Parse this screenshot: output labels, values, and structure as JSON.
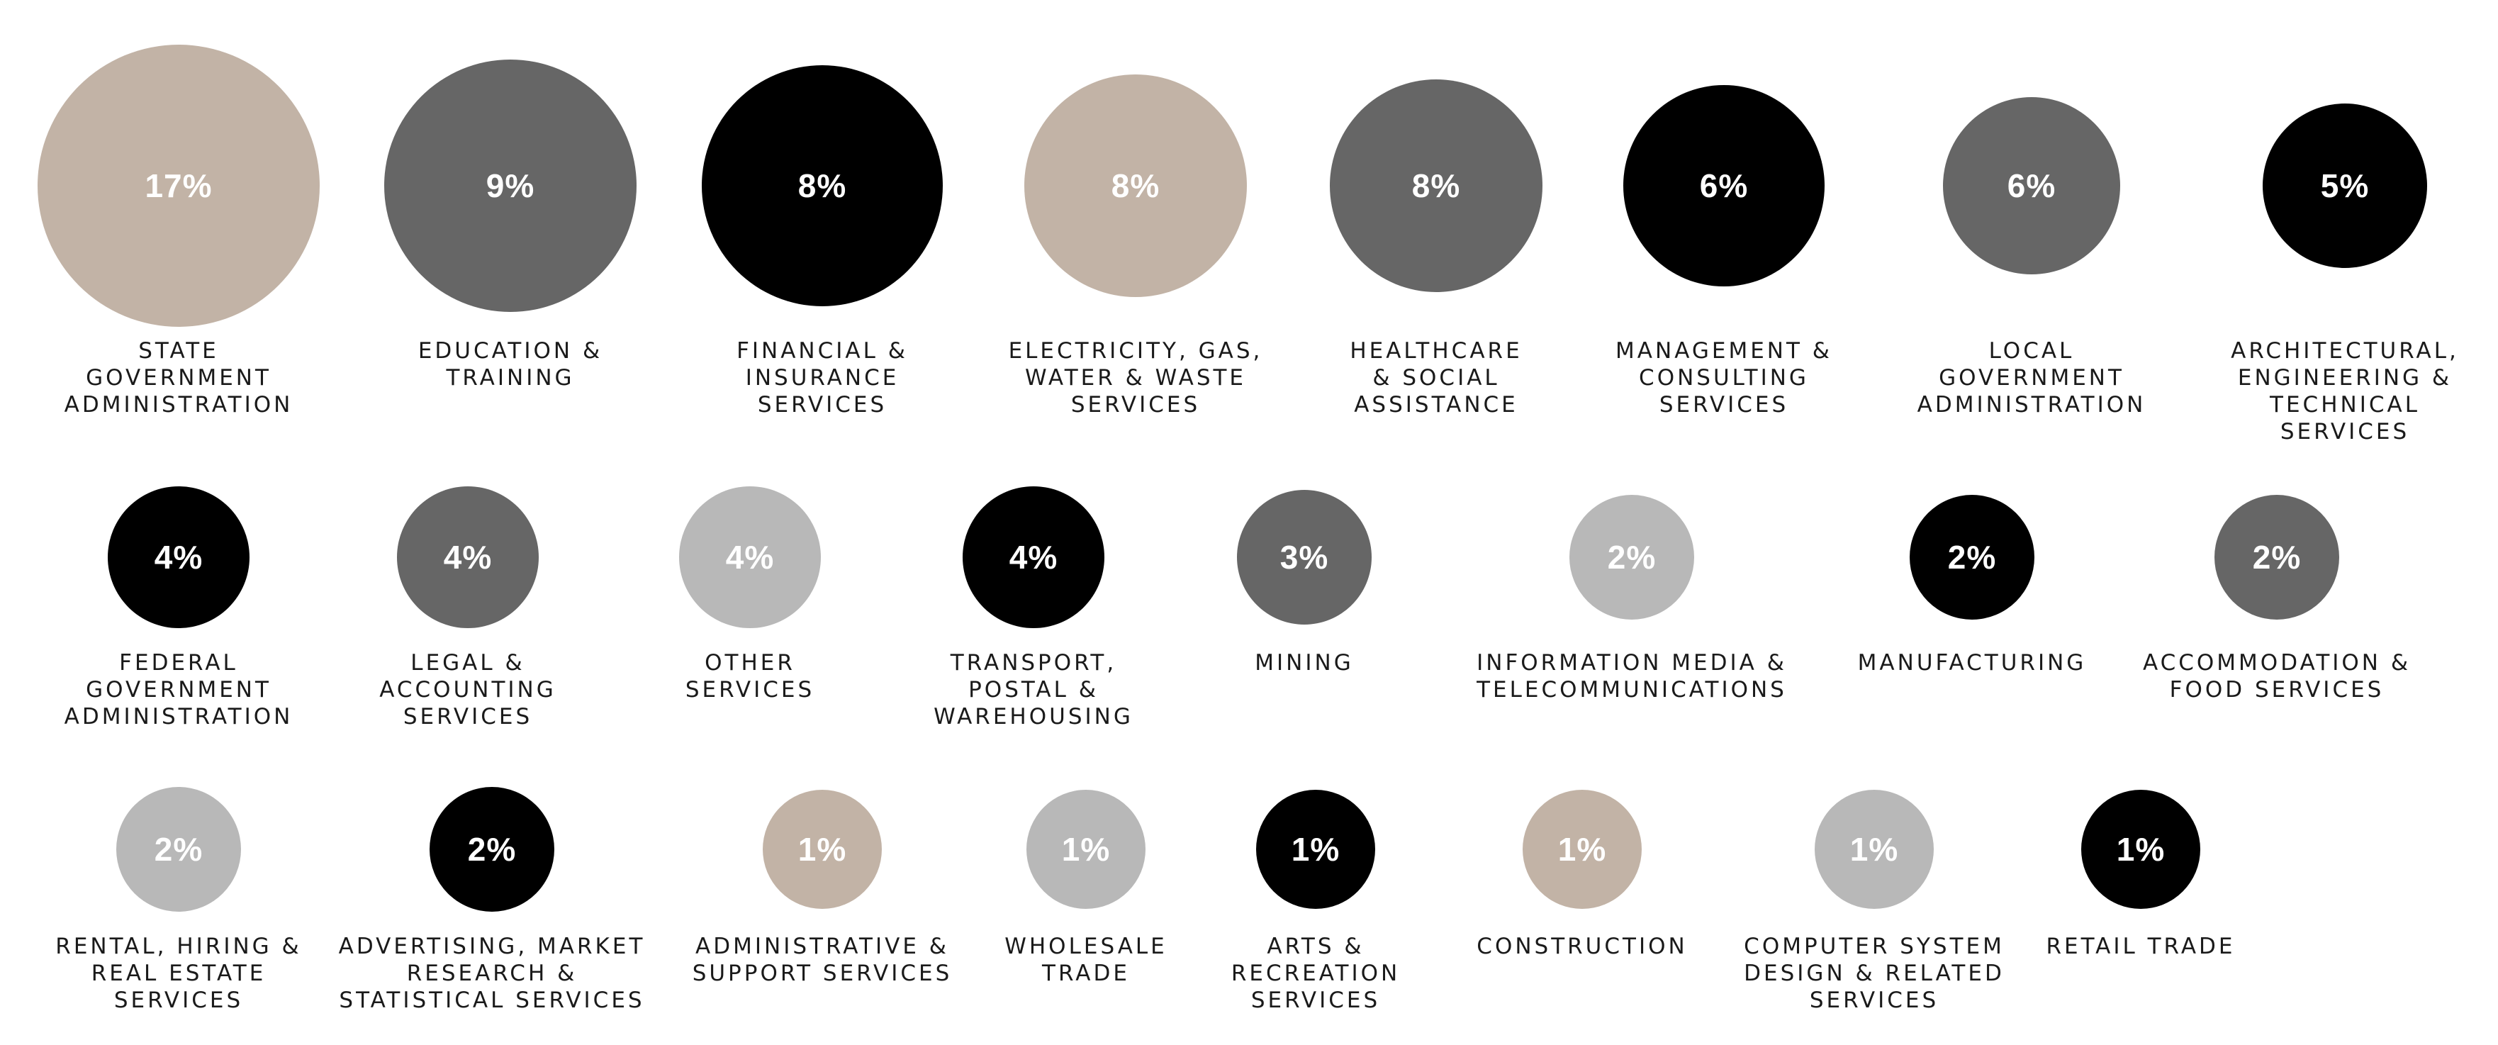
{
  "colors": {
    "taupe": "#c2b3a6",
    "dark_grey": "#666666",
    "black": "#000000",
    "light_grey": "#b8b8b8",
    "percent_text": "#ffffff",
    "label_text": "#1a1a1a"
  },
  "chart_data": {
    "type": "bubble",
    "title": "",
    "unit": "%",
    "items": [
      {
        "label": "STATE\nGOVERNMENT\nADMINISTRATION",
        "value": 17,
        "display": "17%",
        "color": "taupe"
      },
      {
        "label": "EDUCATION &\nTRAINING",
        "value": 9,
        "display": "9%",
        "color": "dark_grey"
      },
      {
        "label": "FINANCIAL &\nINSURANCE\nSERVICES",
        "value": 8,
        "display": "8%",
        "color": "black"
      },
      {
        "label": "ELECTRICITY, GAS,\nWATER & WASTE\nSERVICES",
        "value": 8,
        "display": "8%",
        "color": "taupe"
      },
      {
        "label": "HEALTHCARE\n& SOCIAL\nASSISTANCE",
        "value": 8,
        "display": "8%",
        "color": "dark_grey"
      },
      {
        "label": "MANAGEMENT &\nCONSULTING\nSERVICES",
        "value": 6,
        "display": "6%",
        "color": "black"
      },
      {
        "label": "LOCAL\nGOVERNMENT\nADMINISTRATION",
        "value": 6,
        "display": "6%",
        "color": "dark_grey"
      },
      {
        "label": "ARCHITECTURAL,\nENGINEERING &\nTECHNICAL\nSERVICES",
        "value": 5,
        "display": "5%",
        "color": "black"
      },
      {
        "label": "FEDERAL\nGOVERNMENT\nADMINISTRATION",
        "value": 4,
        "display": "4%",
        "color": "black"
      },
      {
        "label": "LEGAL &\nACCOUNTING\nSERVICES",
        "value": 4,
        "display": "4%",
        "color": "dark_grey"
      },
      {
        "label": "OTHER\nSERVICES",
        "value": 4,
        "display": "4%",
        "color": "light_grey"
      },
      {
        "label": "TRANSPORT,\nPOSTAL &\nWAREHOUSING",
        "value": 4,
        "display": "4%",
        "color": "black"
      },
      {
        "label": "MINING",
        "value": 3,
        "display": "3%",
        "color": "dark_grey"
      },
      {
        "label": "INFORMATION MEDIA &\nTELECOMMUNICATIONS",
        "value": 2,
        "display": "2%",
        "color": "light_grey"
      },
      {
        "label": "MANUFACTURING",
        "value": 2,
        "display": "2%",
        "color": "black"
      },
      {
        "label": "ACCOMMODATION &\nFOOD SERVICES",
        "value": 2,
        "display": "2%",
        "color": "dark_grey"
      },
      {
        "label": "RENTAL, HIRING &\nREAL ESTATE\nSERVICES",
        "value": 2,
        "display": "2%",
        "color": "light_grey"
      },
      {
        "label": "ADVERTISING, MARKET\nRESEARCH &\nSTATISTICAL SERVICES",
        "value": 2,
        "display": "2%",
        "color": "black"
      },
      {
        "label": "ADMINISTRATIVE &\nSUPPORT SERVICES",
        "value": 1,
        "display": "1%",
        "color": "taupe"
      },
      {
        "label": "WHOLESALE\nTRADE",
        "value": 1,
        "display": "1%",
        "color": "light_grey"
      },
      {
        "label": "ARTS &\nRECREATION\nSERVICES",
        "value": 1,
        "display": "1%",
        "color": "black"
      },
      {
        "label": "CONSTRUCTION",
        "value": 1,
        "display": "1%",
        "color": "taupe"
      },
      {
        "label": "COMPUTER SYSTEM\nDESIGN & RELATED\nSERVICES",
        "value": 1,
        "display": "1%",
        "color": "light_grey"
      },
      {
        "label": "RETAIL TRADE",
        "value": 1,
        "display": "1%",
        "color": "black"
      }
    ]
  }
}
